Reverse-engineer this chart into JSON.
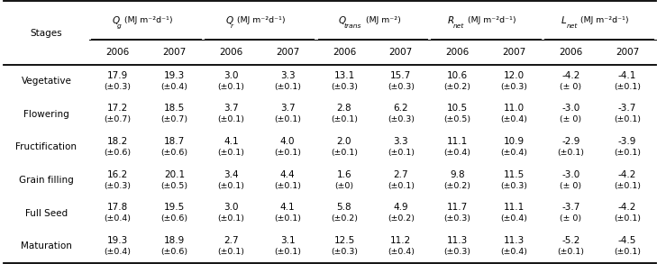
{
  "stages": [
    "Vegetative",
    "Flowering",
    "Fructification",
    "Grain filling",
    "Full Seed",
    "Maturation"
  ],
  "col_groups": [
    {
      "prefix": "Q",
      "sub": "g",
      "unit": "MJ m⁻²d⁻¹"
    },
    {
      "prefix": "Q",
      "sub": "r",
      "unit": "MJ m⁻²d⁻¹"
    },
    {
      "prefix": "Q",
      "sub": "trans",
      "unit": "MJ m⁻²"
    },
    {
      "prefix": "R",
      "sub": "net",
      "unit": "MJ m⁻²d⁻¹"
    },
    {
      "prefix": "L",
      "sub": "net",
      "unit": "MJ m⁻²d⁻¹"
    }
  ],
  "data": [
    [
      [
        "17.9",
        "19.3"
      ],
      [
        "3.0",
        "3.3"
      ],
      [
        "13.1",
        "15.7"
      ],
      [
        "10.6",
        "12.0"
      ],
      [
        "-4.2",
        "-4.1"
      ]
    ],
    [
      [
        "17.2",
        "18.5"
      ],
      [
        "3.7",
        "3.7"
      ],
      [
        "2.8",
        "6.2"
      ],
      [
        "10.5",
        "11.0"
      ],
      [
        "-3.0",
        "-3.7"
      ]
    ],
    [
      [
        "18.2",
        "18.7"
      ],
      [
        "4.1",
        "4.0"
      ],
      [
        "2.0",
        "3.3"
      ],
      [
        "11.1",
        "10.9"
      ],
      [
        "-2.9",
        "-3.9"
      ]
    ],
    [
      [
        "16.2",
        "20.1"
      ],
      [
        "3.4",
        "4.4"
      ],
      [
        "1.6",
        "2.7"
      ],
      [
        "9.8",
        "11.5"
      ],
      [
        "-3.0",
        "-4.2"
      ]
    ],
    [
      [
        "17.8",
        "19.5"
      ],
      [
        "3.0",
        "4.1"
      ],
      [
        "5.8",
        "4.9"
      ],
      [
        "11.7",
        "11.1"
      ],
      [
        "-3.7",
        "-4.2"
      ]
    ],
    [
      [
        "19.3",
        "18.9"
      ],
      [
        "2.7",
        "3.1"
      ],
      [
        "12.5",
        "11.2"
      ],
      [
        "11.3",
        "11.3"
      ],
      [
        "-5.2",
        "-4.5"
      ]
    ]
  ],
  "errors": [
    [
      [
        "(±0.3)",
        "(±0.4)"
      ],
      [
        "(±0.1)",
        "(±0.1)"
      ],
      [
        "(±0.3)",
        "(±0.3)"
      ],
      [
        "(±0.2)",
        "(±0.3)"
      ],
      [
        "(± 0)",
        "(±0.1)"
      ]
    ],
    [
      [
        "(±0.7)",
        "(±0.7)"
      ],
      [
        "(±0.1)",
        "(±0.1)"
      ],
      [
        "(±0.1)",
        "(±0.3)"
      ],
      [
        "(±0.5)",
        "(±0.4)"
      ],
      [
        "(± 0)",
        "(±0.1)"
      ]
    ],
    [
      [
        "(±0.6)",
        "(±0.6)"
      ],
      [
        "(±0.1)",
        "(±0.1)"
      ],
      [
        "(±0.1)",
        "(±0.1)"
      ],
      [
        "(±0.4)",
        "(±0.4)"
      ],
      [
        "(±0.1)",
        "(±0.1)"
      ]
    ],
    [
      [
        "(±0.3)",
        "(±0.5)"
      ],
      [
        "(±0.1)",
        "(±0.1)"
      ],
      [
        "(±0)",
        "(±0.1)"
      ],
      [
        "(±0.2)",
        "(±0.3)"
      ],
      [
        "(± 0)",
        "(±0.1)"
      ]
    ],
    [
      [
        "(±0.4)",
        "(±0.6)"
      ],
      [
        "(±0.1)",
        "(±0.1)"
      ],
      [
        "(±0.2)",
        "(±0.2)"
      ],
      [
        "(±0.3)",
        "(±0.4)"
      ],
      [
        "(± 0)",
        "(±0.1)"
      ]
    ],
    [
      [
        "(±0.4)",
        "(±0.6)"
      ],
      [
        "(±0.1)",
        "(±0.1)"
      ],
      [
        "(±0.3)",
        "(±0.4)"
      ],
      [
        "(±0.3)",
        "(±0.4)"
      ],
      [
        "(±0.1)",
        "(±0.1)"
      ]
    ]
  ],
  "bg_color": "#ffffff",
  "text_color": "#000000",
  "font_size": 7.5
}
